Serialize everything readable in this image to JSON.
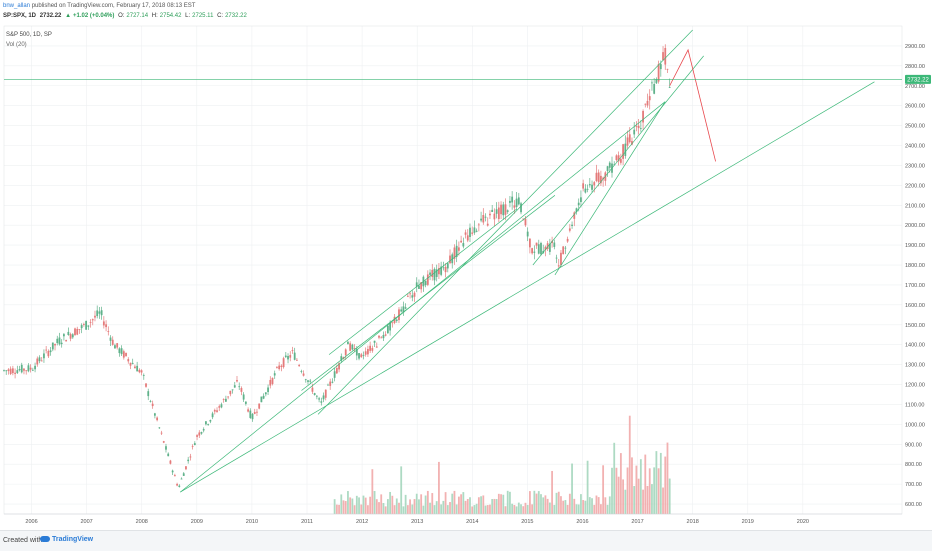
{
  "header": {
    "author": "bnw_allan",
    "published": "published on TradingView.com, February 17, 2018 08:13 EST",
    "symbol": "SP:SPX, 1D",
    "last": "2732.22",
    "change": "+1.02 (+0.04%)",
    "o_label": "O:",
    "o_value": "2727.14",
    "h_label": "H:",
    "h_value": "2754.42",
    "l_label": "L:",
    "l_value": "2725.11",
    "c_label": "C:",
    "c_value": "2732.22"
  },
  "legend": {
    "title": "S&P 500, 1D, SP",
    "volume": "Vol (20)"
  },
  "price_tag": "2732.22",
  "footer": {
    "created": "Created with",
    "brand": "TradingView"
  },
  "colors": {
    "trendline": "#3cb878",
    "projection": "#e8474c",
    "candle_up": "#5fb18a",
    "candle_down": "#e47a7a",
    "vol_up": "#9fd4b8",
    "vol_down": "#f0a3a3",
    "tag_bg": "#3cb878",
    "grid": "#eef0f2"
  },
  "chart_data": {
    "type": "line",
    "series": [
      {
        "x": [
          "2006-01",
          "2006-07",
          "2007-01",
          "2007-07",
          "2007-10",
          "2008-01",
          "2008-07",
          "2009-03",
          "2009-07",
          "2010-01",
          "2010-04",
          "2010-07",
          "2011-01",
          "2011-04",
          "2011-10",
          "2012-04",
          "2012-07",
          "2013-01",
          "2013-07",
          "2014-01",
          "2014-07",
          "2015-05",
          "2015-08",
          "2016-01",
          "2016-02",
          "2016-07",
          "2017-01",
          "2017-07",
          "2018-01",
          "2018-02"
        ],
        "values": [
          1270,
          1280,
          1420,
          1500,
          1560,
          1400,
          1260,
          680,
          940,
          1120,
          1210,
          1030,
          1290,
          1360,
          1100,
          1400,
          1330,
          1480,
          1690,
          1790,
          1980,
          2130,
          1880,
          1900,
          1810,
          2170,
          2280,
          2470,
          2860,
          2700
        ]
      }
    ],
    "annotations": {
      "horizontal_line": 2732.22,
      "projection_path": [
        [
          "2018-02",
          2700
        ],
        [
          "2018-06",
          2880
        ],
        [
          "2018-12",
          2320
        ]
      ]
    },
    "y_ticks": [
      600,
      700,
      800,
      900,
      1000,
      1100,
      1200,
      1300,
      1400,
      1500,
      1600,
      1700,
      1800,
      1900,
      2000,
      2100,
      2200,
      2300,
      2400,
      2500,
      2600,
      2700,
      2800,
      2900
    ],
    "y_tick_labels": [
      "600.00",
      "700.00",
      "800.00",
      "900.00",
      "1000.00",
      "1100.00",
      "1200.00",
      "1300.00",
      "1400.00",
      "1500.00",
      "1600.00",
      "1700.00",
      "1800.00",
      "1900.00",
      "2000.00",
      "2100.00",
      "2200.00",
      "2300.00",
      "2400.00",
      "2500.00",
      "2600.00",
      "2700.00",
      "2800.00",
      "2900.00"
    ],
    "x_tick_labels": [
      "2006",
      "2007",
      "2008",
      "2009",
      "2010",
      "2011",
      "2012",
      "2013",
      "2014",
      "2015",
      "2016",
      "2017",
      "2018",
      "2019",
      "2020"
    ],
    "ylim": [
      550,
      3000
    ],
    "grid": true
  }
}
